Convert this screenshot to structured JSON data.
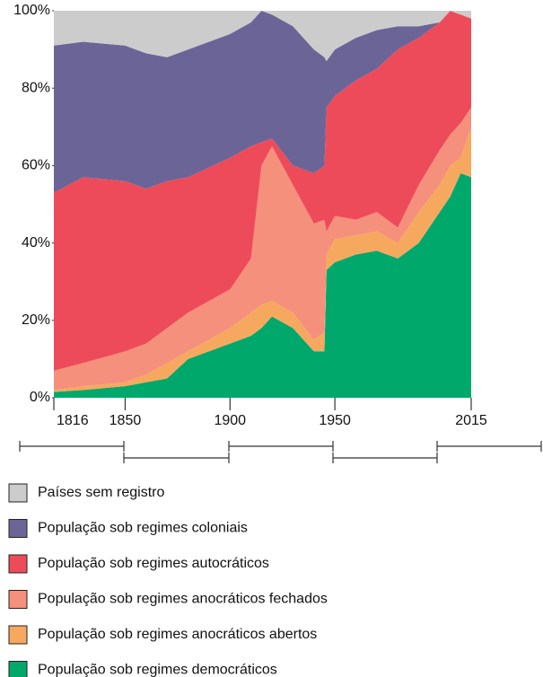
{
  "chart_data": {
    "type": "stacked_area",
    "x": [
      1816,
      1830,
      1850,
      1860,
      1870,
      1880,
      1900,
      1910,
      1915,
      1920,
      1930,
      1940,
      1945,
      1946,
      1950,
      1960,
      1970,
      1980,
      1990,
      2000,
      2005,
      2010,
      2015
    ],
    "xlim": [
      1816,
      2015
    ],
    "xticks": [
      1816,
      1850,
      1900,
      1950,
      2015
    ],
    "ylim": [
      0,
      100
    ],
    "yticks": [
      {
        "value": 0,
        "label": "0%"
      },
      {
        "value": 20,
        "label": "20%"
      },
      {
        "value": 40,
        "label": "40%"
      },
      {
        "value": 60,
        "label": "60%"
      },
      {
        "value": 80,
        "label": "80%"
      },
      {
        "value": 100,
        "label": "100%"
      }
    ],
    "series": [
      {
        "name": "População sob regimes democráticos",
        "color": "#00a86b",
        "values": [
          1.5,
          2,
          3,
          4,
          5,
          10,
          14,
          16,
          18,
          21,
          18,
          12,
          12,
          33,
          35,
          37,
          38,
          36,
          40,
          48,
          52,
          58,
          57
        ]
      },
      {
        "name": "População sob regimes anocráticos abertos",
        "color": "#f7a85f",
        "values": [
          0.5,
          1,
          1,
          2,
          4,
          2,
          4,
          6,
          6,
          4,
          4,
          3,
          5,
          4,
          6,
          5,
          5,
          4,
          8,
          7,
          8,
          4,
          13
        ]
      },
      {
        "name": "População sob regimes anocráticos fechados",
        "color": "#f4907c",
        "values": [
          5,
          6,
          8,
          8,
          9,
          10,
          10,
          14,
          36,
          40,
          33,
          30,
          29,
          6,
          6,
          4,
          5,
          4,
          7,
          9,
          8,
          9,
          5
        ]
      },
      {
        "name": "População sob regimes autocráticos",
        "color": "#ee4b5a",
        "values": [
          46,
          48,
          44,
          40,
          38,
          35,
          34,
          29,
          6,
          2,
          5,
          13,
          14,
          32,
          31,
          36,
          37,
          46,
          38,
          33,
          32,
          28,
          23
        ]
      },
      {
        "name": "População sob regimes coloniais",
        "color": "#6b6597",
        "values": [
          38,
          35,
          35,
          35,
          32,
          33,
          32,
          32,
          34,
          32,
          36,
          32,
          28,
          12,
          12,
          11,
          10,
          6,
          3,
          0,
          0,
          0,
          0
        ]
      },
      {
        "name": "Países sem registro",
        "color": "#cccccc",
        "values": [
          9,
          8,
          9,
          11,
          12,
          10,
          6,
          3,
          0,
          1,
          4,
          10,
          12,
          13,
          10,
          7,
          5,
          4,
          4,
          3,
          0,
          1,
          2
        ]
      }
    ]
  }
}
